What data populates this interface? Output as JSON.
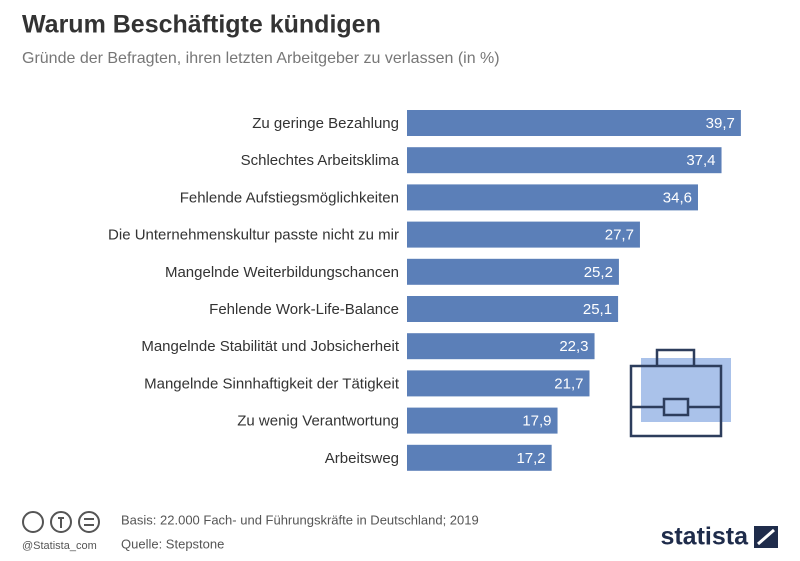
{
  "chart_data": {
    "type": "bar",
    "orientation": "horizontal",
    "title": "Warum Beschäftigte kündigen",
    "subtitle": "Gründe der Befragten, ihren letzten Arbeitgeber zu verlassen (in %)",
    "categories": [
      "Zu geringe Bezahlung",
      "Schlechtes Arbeitsklima",
      "Fehlende Aufstiegsmöglichkeiten",
      "Die Unternehmenskultur passte nicht zu mir",
      "Mangelnde Weiterbildungschancen",
      "Fehlende Work-Life-Balance",
      "Mangelnde Stabilität und Jobsicherheit",
      "Mangelnde Sinnhaftigkeit der Tätigkeit",
      "Zu wenig Verantwortung",
      "Arbeitsweg"
    ],
    "values": [
      39.7,
      37.4,
      34.6,
      27.7,
      25.2,
      25.1,
      22.3,
      21.7,
      17.9,
      17.2
    ],
    "value_labels": [
      "39,7",
      "37,4",
      "34,6",
      "27,7",
      "25,2",
      "25,1",
      "22,3",
      "21,7",
      "17,9",
      "17,2"
    ],
    "color": "#5b7fb8",
    "footer": {
      "basis": "Basis: 22.000 Fach- und Führungskräfte in Deutschland; 2019",
      "source": "Quelle: Stepstone",
      "handle": "@Statista_com",
      "brand": "statista"
    }
  }
}
